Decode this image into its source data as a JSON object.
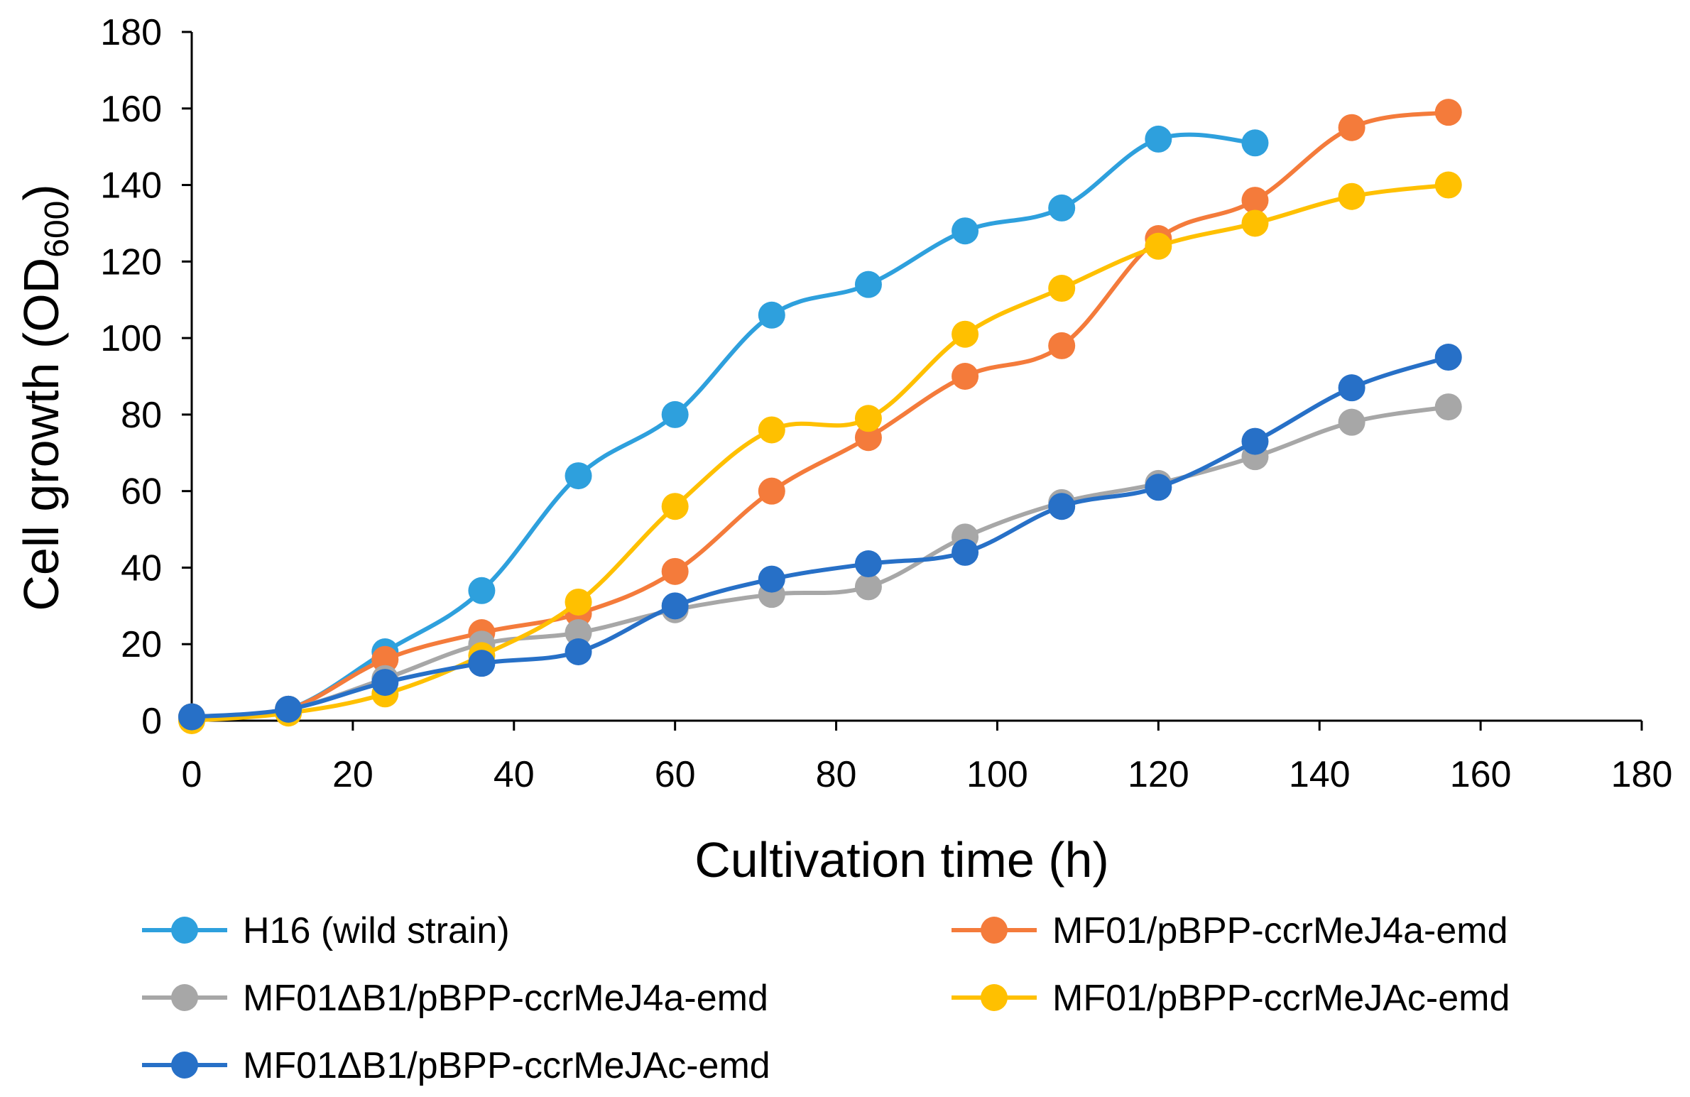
{
  "chart_data": {
    "type": "line",
    "title": "",
    "xlabel": "Cultivation time (h)",
    "ylabel": {
      "main": "Cell growth (OD",
      "sub": "600",
      "close": ")"
    },
    "xlim": [
      0,
      180
    ],
    "ylim": [
      0,
      180
    ],
    "xticks": [
      0,
      20,
      40,
      60,
      80,
      100,
      120,
      140,
      160,
      180
    ],
    "yticks": [
      0,
      20,
      40,
      60,
      80,
      100,
      120,
      140,
      160,
      180
    ],
    "grid": false,
    "legend_position": "bottom",
    "series": [
      {
        "name": "H16 (wild strain)",
        "color": "#2EA0DD",
        "x": [
          0,
          12,
          24,
          36,
          48,
          60,
          72,
          84,
          96,
          108,
          120,
          132
        ],
        "y": [
          1,
          3,
          18,
          34,
          64,
          80,
          106,
          114,
          128,
          134,
          152,
          151
        ]
      },
      {
        "name": "MF01/pBPP-ccrMeJ4a-emd",
        "color": "#F47B3B",
        "x": [
          0,
          12,
          24,
          36,
          48,
          60,
          72,
          84,
          96,
          108,
          120,
          132,
          144,
          156
        ],
        "y": [
          1,
          3,
          16,
          23,
          28,
          39,
          60,
          74,
          90,
          98,
          126,
          136,
          155,
          159
        ]
      },
      {
        "name": "MF01ΔB1/pBPP-ccrMeJ4a-emd",
        "color": "#A7A7A7",
        "x": [
          0,
          12,
          24,
          36,
          48,
          60,
          72,
          84,
          96,
          108,
          120,
          132,
          144,
          156
        ],
        "y": [
          1,
          3,
          11,
          20,
          23,
          29,
          33,
          35,
          48,
          57,
          62,
          69,
          78,
          82
        ]
      },
      {
        "name": "MF01/pBPP-ccrMeJAc-emd",
        "color": "#FFC000",
        "x": [
          0,
          12,
          24,
          36,
          48,
          60,
          72,
          84,
          96,
          108,
          120,
          132,
          144,
          156
        ],
        "y": [
          0,
          2,
          7,
          17,
          31,
          56,
          76,
          79,
          101,
          113,
          124,
          130,
          137,
          140
        ]
      },
      {
        "name": "MF01ΔB1/pBPP-ccrMeJAc-emd",
        "color": "#2770C7",
        "x": [
          0,
          12,
          24,
          36,
          48,
          60,
          72,
          84,
          96,
          108,
          120,
          132,
          144,
          156
        ],
        "y": [
          1,
          3,
          10,
          15,
          18,
          30,
          37,
          41,
          44,
          56,
          61,
          73,
          87,
          95
        ]
      }
    ]
  }
}
